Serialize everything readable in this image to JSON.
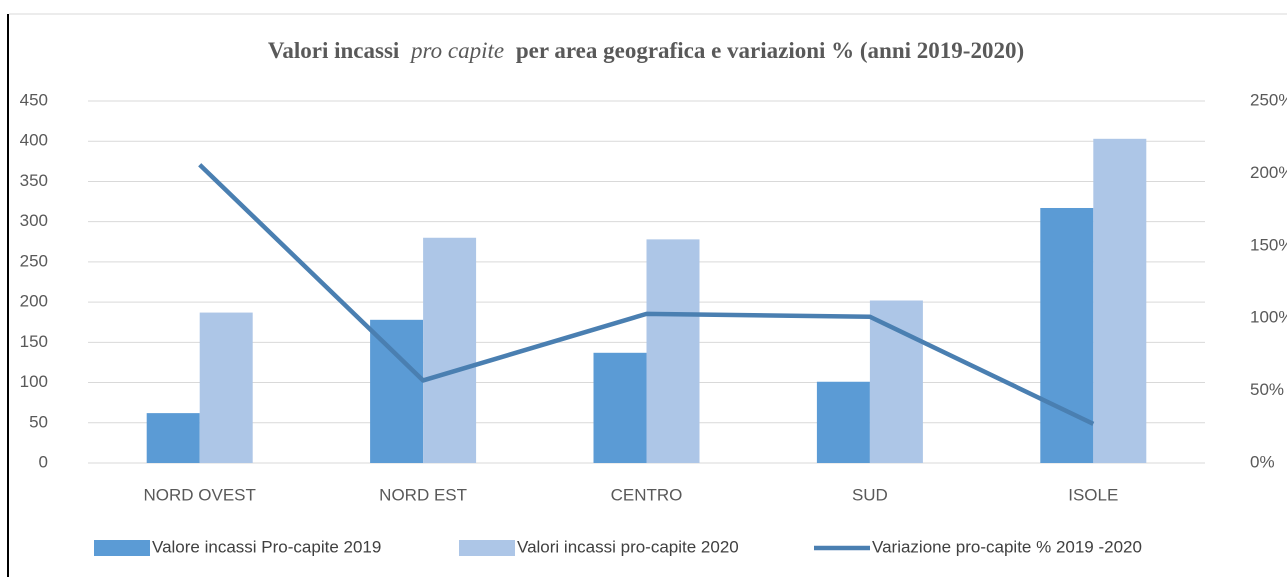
{
  "chart_data": {
    "type": "bar_line",
    "title": [
      "Valori incassi",
      "pro capite",
      "per area geografica e variazioni % (anni 2019-2020)"
    ],
    "categories": [
      "NORD OVEST",
      "NORD EST",
      "CENTRO",
      "SUD",
      "ISOLE"
    ],
    "series": [
      {
        "name": "Valore incassi Pro-capite 2019",
        "color": "#5b9bd5",
        "type": "bar",
        "values": [
          62,
          178,
          137,
          101,
          317
        ]
      },
      {
        "name": "Valori incassi pro-capite 2020",
        "color": "#adc6e7",
        "type": "bar",
        "values": [
          187,
          280,
          278,
          202,
          403
        ]
      },
      {
        "name": "Variazione pro-capite % 2019 -2020",
        "color": "#4a7fb1",
        "type": "line",
        "axis": "y2",
        "values": [
          206,
          57,
          103,
          101,
          27
        ]
      }
    ],
    "ylim": [
      0,
      450
    ],
    "yticks": [
      0,
      50,
      100,
      150,
      200,
      250,
      300,
      350,
      400,
      450
    ],
    "y2lim": [
      0,
      250
    ],
    "y2ticks": [
      {
        "value": 0,
        "label": "0%"
      },
      {
        "value": 50,
        "label": "50%"
      },
      {
        "value": 100,
        "label": "100%"
      },
      {
        "value": 150,
        "label": "150%"
      },
      {
        "value": 200,
        "label": "200%"
      },
      {
        "value": 250,
        "label": "250%"
      }
    ],
    "grid": true,
    "legend": "bottom"
  }
}
